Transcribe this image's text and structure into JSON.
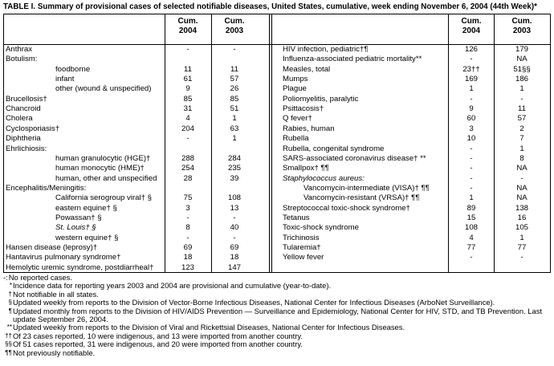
{
  "title": "TABLE I. Summary of provisional cases of selected notifiable diseases, United States, cumulative, week ending November 6, 2004 (44th Week)*",
  "headers": [
    {
      "label": "Cum.",
      "year": "2004"
    },
    {
      "label": "Cum.",
      "year": "2003"
    }
  ],
  "left_rows": [
    {
      "name": "Anthrax",
      "values": [
        "-",
        "-"
      ]
    },
    {
      "name": "Botulism:",
      "children": [
        {
          "name": "foodborne",
          "values": [
            "11",
            "11"
          ]
        },
        {
          "name": "infant",
          "values": [
            "61",
            "57"
          ]
        },
        {
          "name": "other (wound & unspecified)",
          "values": [
            "9",
            "26"
          ]
        }
      ]
    },
    {
      "name": "Brucellosis†",
      "values": [
        "85",
        "85"
      ]
    },
    {
      "name": "Chancroid",
      "values": [
        "31",
        "51"
      ]
    },
    {
      "name": "Cholera",
      "values": [
        "4",
        "1"
      ]
    },
    {
      "name": "Cyclosporiasis†",
      "values": [
        "204",
        "63"
      ]
    },
    {
      "name": "Diphtheria",
      "values": [
        "-",
        "1"
      ]
    },
    {
      "name": "Ehrlichiosis:",
      "children": [
        {
          "name": "human granulocytic (HGE)†",
          "values": [
            "288",
            "284"
          ]
        },
        {
          "name": "human monocytic (HME)†",
          "values": [
            "254",
            "235"
          ]
        },
        {
          "name": "human, other and unspecified",
          "values": [
            "28",
            "39"
          ]
        }
      ]
    },
    {
      "name": "Encephalitis/Meningitis:",
      "children": [
        {
          "name": "California serogroup viral† §",
          "values": [
            "75",
            "108"
          ]
        },
        {
          "name": "eastern equine† §",
          "values": [
            "3",
            "13"
          ]
        },
        {
          "name": "Powassan† §",
          "values": [
            "-",
            "-"
          ]
        },
        {
          "name": "St. Louis† §",
          "values": [
            "8",
            "40"
          ],
          "italic": true
        },
        {
          "name": "western equine† §",
          "values": [
            "-",
            "-"
          ]
        }
      ]
    },
    {
      "name": "Hansen disease (leprosy)†",
      "values": [
        "69",
        "69"
      ]
    },
    {
      "name": "Hantavirus pulmonary syndrome†",
      "values": [
        "18",
        "18"
      ]
    },
    {
      "name": "Hemolytic uremic syndrome, postdiarrheal†",
      "values": [
        "123",
        "147"
      ]
    }
  ],
  "right_rows": [
    {
      "name": "HIV infection, pediatric†¶",
      "values": [
        "126",
        "179"
      ]
    },
    {
      "name": "Influenza-associated pediatric mortality**",
      "values": [
        "-",
        "NA"
      ]
    },
    {
      "name": "Measles, total",
      "values": [
        "23††",
        "51§§"
      ]
    },
    {
      "name": "Mumps",
      "values": [
        "169",
        "186"
      ]
    },
    {
      "name": "Plague",
      "values": [
        "1",
        "1"
      ]
    },
    {
      "name": "Poliomyelitis, paralytic",
      "values": [
        "-",
        "-"
      ]
    },
    {
      "name": "Psittacosis†",
      "values": [
        "9",
        "11"
      ]
    },
    {
      "name": "Q fever†",
      "values": [
        "60",
        "57"
      ]
    },
    {
      "name": "Rabies, human",
      "values": [
        "3",
        "2"
      ]
    },
    {
      "name": "Rubella",
      "values": [
        "10",
        "7"
      ]
    },
    {
      "name": "Rubella, congenital syndrome",
      "values": [
        "-",
        "1"
      ]
    },
    {
      "name": "SARS-associated coronavirus disease† **",
      "values": [
        "-",
        "8"
      ]
    },
    {
      "name": "Smallpox† ¶¶",
      "values": [
        "-",
        "NA"
      ]
    },
    {
      "name": "Staphylococcus aureus:",
      "italic": true,
      "values": [
        "-",
        "-"
      ],
      "children": [
        {
          "name": "Vancomycin-intermediate (VISA)† ¶¶",
          "values": [
            "-",
            "NA"
          ]
        },
        {
          "name": "Vancomycin-resistant (VRSA)† ¶¶",
          "values": [
            "1",
            "NA"
          ]
        }
      ]
    },
    {
      "name": "Streptococcal toxic-shock syndrome†",
      "values": [
        "89",
        "138"
      ]
    },
    {
      "name": "Tetanus",
      "values": [
        "15",
        "16"
      ]
    },
    {
      "name": "Toxic-shock syndrome",
      "values": [
        "108",
        "105"
      ]
    },
    {
      "name": "Trichinosis",
      "values": [
        "4",
        "1"
      ]
    },
    {
      "name": "Tularemia†",
      "values": [
        "77",
        "77"
      ]
    },
    {
      "name": "Yellow fever",
      "values": [
        "-",
        "-"
      ]
    }
  ],
  "footnotes": [
    {
      "mark": "-:",
      "text": "No reported cases."
    },
    {
      "mark": "*",
      "text": "Incidence data for reporting years 2003 and 2004 are provisional and cumulative (year-to-date)."
    },
    {
      "mark": "†",
      "text": "Not notifiable in all states."
    },
    {
      "mark": "§",
      "text": "Updated weekly from reports to the Division of Vector-Borne Infectious Diseases, National Center for Infectious Diseases (ArboNet Surveillance)."
    },
    {
      "mark": "¶",
      "text": "Updated monthly from reports to the Division of HIV/AIDS Prevention — Surveillance and Epidemiology, National Center for HIV, STD, and TB Prevention. Last update September 26, 2004."
    },
    {
      "mark": "**",
      "text": "Updated weekly from reports to the Division of Viral and Rickettsial Diseases, National Center for Infectious Diseases."
    },
    {
      "mark": "††",
      "text": "Of 23 cases reported, 10 were indigenous, and 13 were imported from another country."
    },
    {
      "mark": "§§",
      "text": "Of 51 cases reported, 31 were indigenous, and 20 were imported from another country."
    },
    {
      "mark": "¶¶",
      "text": "Not previously notifiable."
    }
  ]
}
